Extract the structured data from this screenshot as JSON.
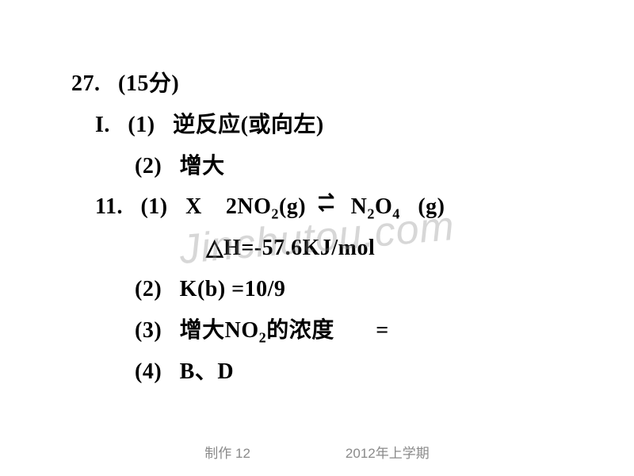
{
  "question": {
    "number": "27.",
    "points_label": "(15分)",
    "partI": {
      "label": "I.",
      "item1_label": "(1)",
      "item1_text": "逆反应(或向左)",
      "item2_label": "(2)",
      "item2_text": "增大"
    },
    "part11": {
      "label": "11.",
      "item1_label": "(1)",
      "item1_prefix": "X",
      "reactant_coef": "2NO",
      "reactant_sub": "2",
      "reactant_state": "(g)",
      "product_coef_a": "N",
      "product_sub_a": "2",
      "product_coef_b": "O",
      "product_sub_b": "4",
      "product_state": "(g)",
      "deltaH_text": "△H=-57.6KJ/mol",
      "item2_label": "(2)",
      "item2_text": "K(b) =10/9",
      "item3_label": "(3)",
      "item3_text_a": "增大NO",
      "item3_sub": "2",
      "item3_text_b": "的浓度",
      "item3_text_c": "=",
      "item4_label": "(4)",
      "item4_text": "B、D"
    }
  },
  "watermark": "Jinchutou.com",
  "footer": {
    "left": "制作 12",
    "right": "2012年上学期"
  },
  "colors": {
    "text": "#000000",
    "background": "#ffffff",
    "watermark": "rgba(140,140,140,0.35)",
    "footer": "#8a8a8a"
  }
}
